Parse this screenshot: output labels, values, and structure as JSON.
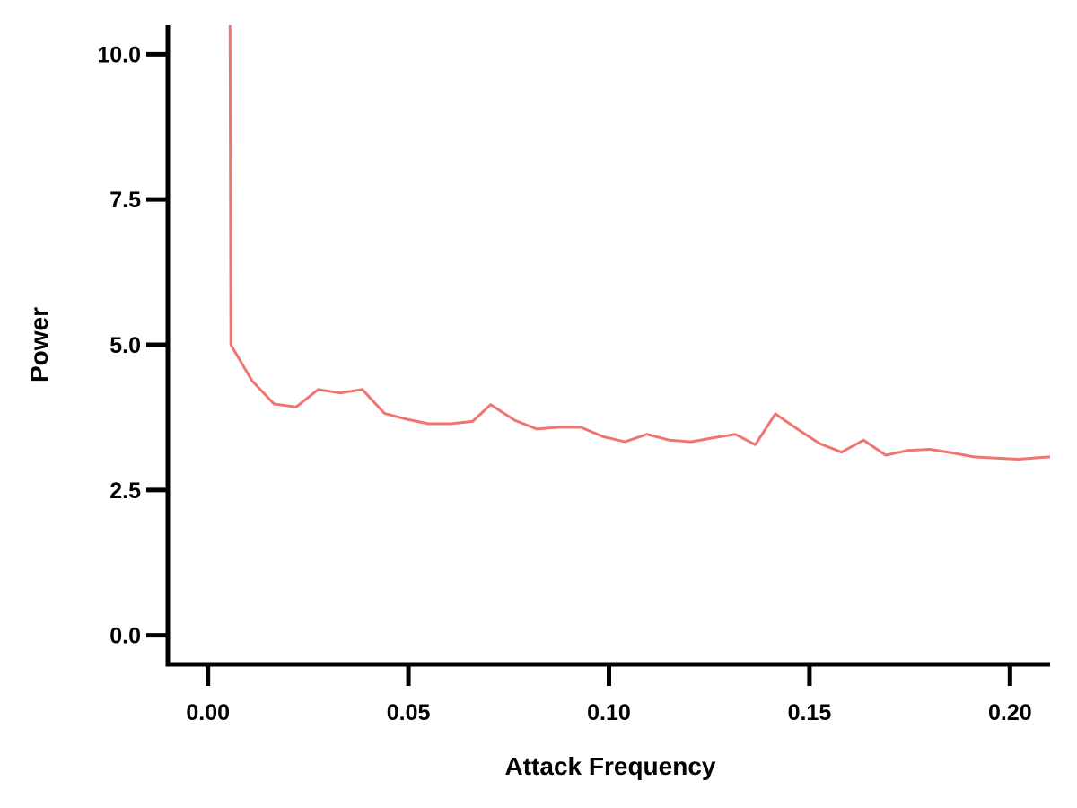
{
  "chart_data": {
    "type": "line",
    "title": "",
    "xlabel": "Attack Frequency",
    "ylabel": "Power",
    "xlim": [
      -0.01,
      0.21
    ],
    "ylim": [
      -0.5,
      10.5
    ],
    "xticks": [
      0.0,
      0.05,
      0.1,
      0.15,
      0.2
    ],
    "xtick_labels": [
      "0.00",
      "0.05",
      "0.10",
      "0.15",
      "0.20"
    ],
    "yticks": [
      0.0,
      2.5,
      5.0,
      7.5,
      10.0
    ],
    "ytick_labels": [
      "0.0",
      "2.5",
      "5.0",
      "7.5",
      "10.0"
    ],
    "grid": false,
    "line_color": "#F07470",
    "series": [
      {
        "x": [
          0.0055,
          0.0056,
          0.0057,
          0.011,
          0.0165,
          0.022,
          0.0275,
          0.033,
          0.0385,
          0.044,
          0.0495,
          0.055,
          0.0605,
          0.066,
          0.0705,
          0.0765,
          0.082,
          0.0875,
          0.093,
          0.0985,
          0.104,
          0.1095,
          0.115,
          0.1205,
          0.126,
          0.1315,
          0.1365,
          0.1415,
          0.147,
          0.1525,
          0.158,
          0.1635,
          0.169,
          0.1745,
          0.18,
          0.1855,
          0.191,
          0.1965,
          0.202,
          0.2075,
          0.21
        ],
        "y": [
          10.5,
          8.0,
          5.0,
          4.38,
          3.98,
          3.93,
          4.23,
          4.17,
          4.23,
          3.82,
          3.72,
          3.64,
          3.64,
          3.68,
          3.97,
          3.7,
          3.55,
          3.58,
          3.58,
          3.42,
          3.33,
          3.46,
          3.36,
          3.33,
          3.4,
          3.46,
          3.28,
          3.81,
          3.55,
          3.3,
          3.15,
          3.36,
          3.1,
          3.18,
          3.2,
          3.14,
          3.07,
          3.05,
          3.03,
          3.06,
          3.07
        ]
      }
    ]
  }
}
